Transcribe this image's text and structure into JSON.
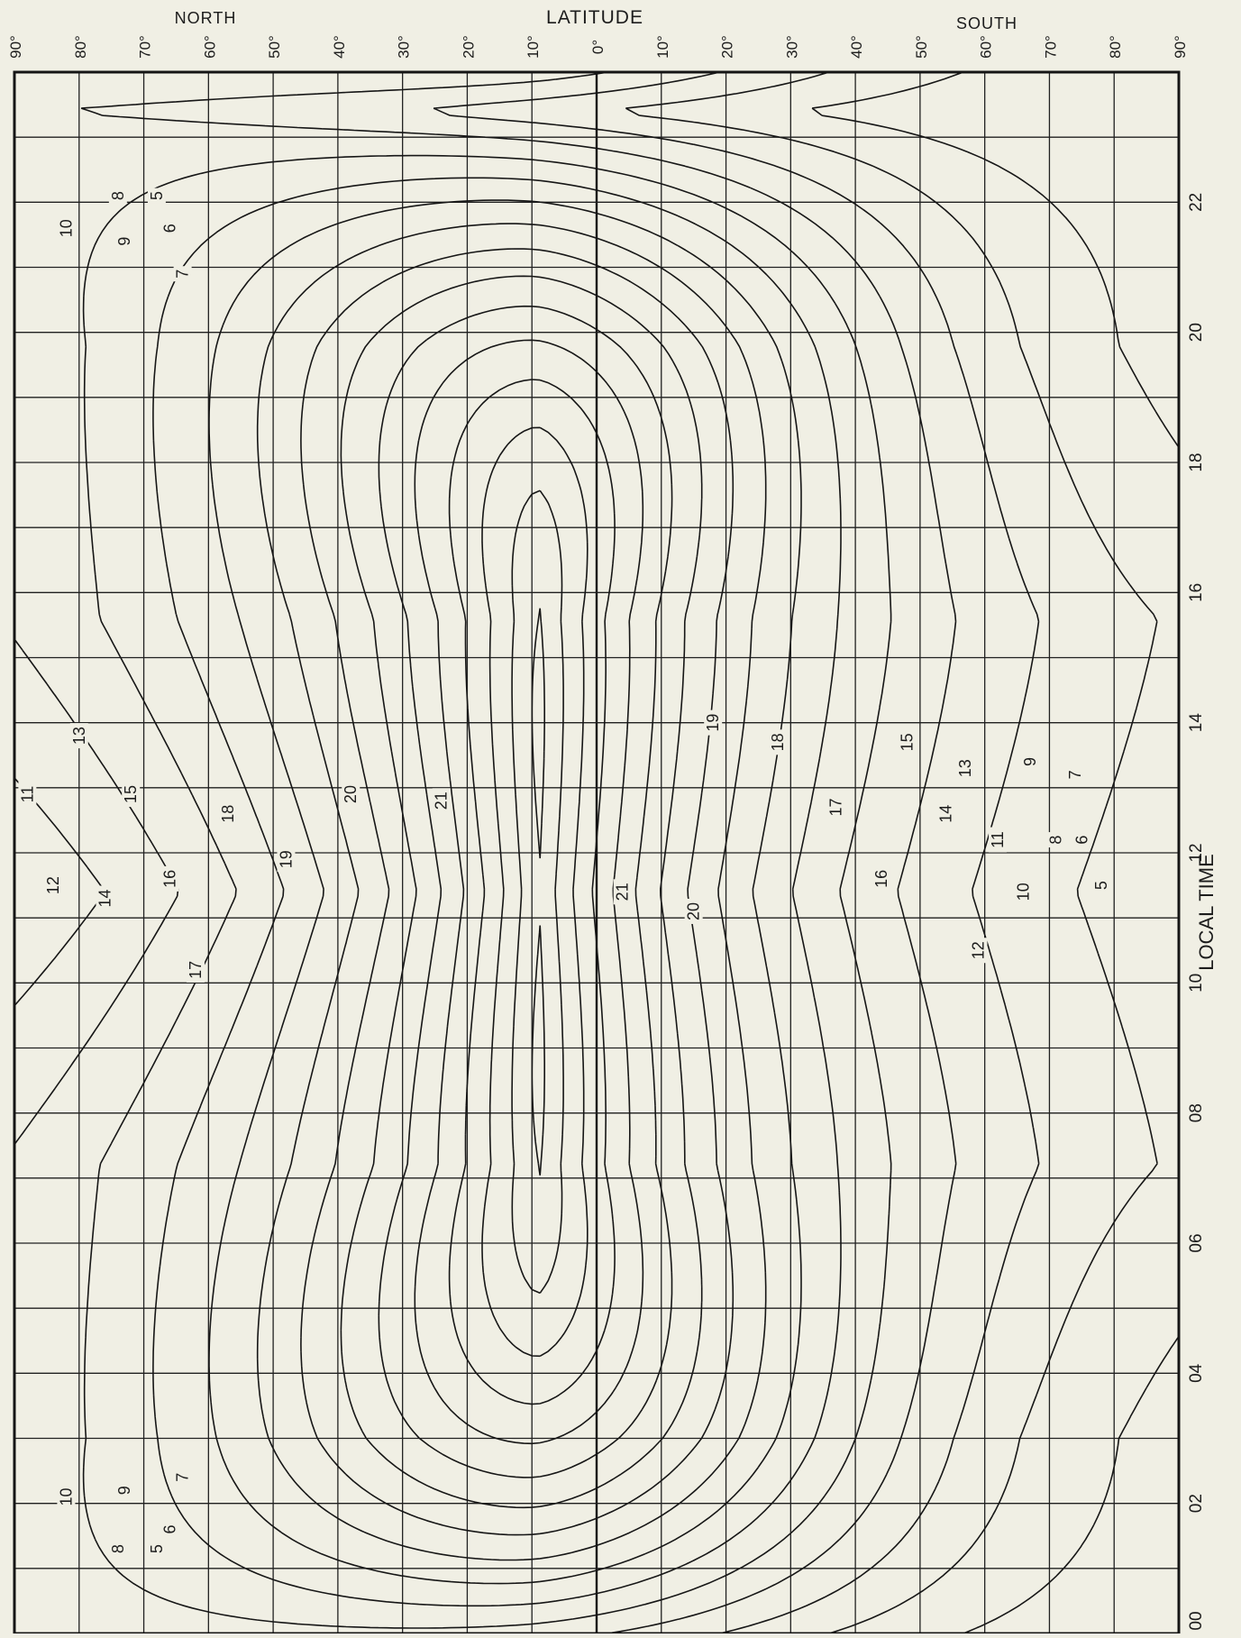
{
  "chart_data": {
    "type": "contour",
    "header": {
      "north": "NORTH",
      "latitude": "LATITUDE",
      "south": "SOUTH"
    },
    "x_axis_label": "LOCAL TIME",
    "latitude_ticks": [
      "90°",
      "80°",
      "70°",
      "60°",
      "50°",
      "40°",
      "30°",
      "20°",
      "10°",
      "0°",
      "10°",
      "20°",
      "30°",
      "40°",
      "50°",
      "60°",
      "70°",
      "80°",
      "90°"
    ],
    "latitude_ticks_signed": [
      90,
      80,
      70,
      60,
      50,
      40,
      30,
      20,
      10,
      0,
      -10,
      -20,
      -30,
      -40,
      -50,
      -60,
      -70,
      -80,
      -90
    ],
    "time_ticks": [
      "00",
      "02",
      "04",
      "06",
      "08",
      "10",
      "12",
      "14",
      "16",
      "18",
      "20",
      "22"
    ],
    "time_tick_hours": [
      0,
      2,
      4,
      6,
      8,
      10,
      12,
      14,
      16,
      18,
      20,
      22
    ],
    "lat_range": [
      90,
      -90
    ],
    "time_range": [
      0,
      24
    ],
    "contour_levels": [
      5,
      6,
      7,
      8,
      9,
      10,
      11,
      12,
      13,
      14,
      15,
      16,
      17,
      18,
      19,
      20,
      21
    ],
    "peak": {
      "local_time_h": 11.4,
      "latitude_deg": 9
    },
    "labels": [
      {
        "text": "5",
        "time": 22.1,
        "lat": 68
      },
      {
        "text": "6",
        "time": 21.6,
        "lat": 66
      },
      {
        "text": "7",
        "time": 20.9,
        "lat": 64
      },
      {
        "text": "8",
        "time": 22.1,
        "lat": 74
      },
      {
        "text": "9",
        "time": 21.4,
        "lat": 73
      },
      {
        "text": "10",
        "time": 21.6,
        "lat": 82
      },
      {
        "text": "5",
        "time": 1.3,
        "lat": 68
      },
      {
        "text": "6",
        "time": 1.6,
        "lat": 66
      },
      {
        "text": "7",
        "time": 2.4,
        "lat": 64
      },
      {
        "text": "8",
        "time": 1.3,
        "lat": 74
      },
      {
        "text": "9",
        "time": 2.2,
        "lat": 73
      },
      {
        "text": "10",
        "time": 2.1,
        "lat": 82
      },
      {
        "text": "11",
        "time": 12.9,
        "lat": 88
      },
      {
        "text": "12",
        "time": 11.5,
        "lat": 84
      },
      {
        "text": "13",
        "time": 13.8,
        "lat": 80
      },
      {
        "text": "14",
        "time": 11.3,
        "lat": 76
      },
      {
        "text": "15",
        "time": 12.9,
        "lat": 72
      },
      {
        "text": "16",
        "time": 11.6,
        "lat": 66
      },
      {
        "text": "17",
        "time": 10.2,
        "lat": 62
      },
      {
        "text": "18",
        "time": 12.6,
        "lat": 57
      },
      {
        "text": "19",
        "time": 11.9,
        "lat": 48
      },
      {
        "text": "20",
        "time": 12.9,
        "lat": 38
      },
      {
        "text": "21",
        "time": 12.8,
        "lat": 24
      },
      {
        "text": "21",
        "time": 11.4,
        "lat": -4
      },
      {
        "text": "20",
        "time": 11.1,
        "lat": -15
      },
      {
        "text": "19",
        "time": 14.0,
        "lat": -18
      },
      {
        "text": "18",
        "time": 13.7,
        "lat": -28
      },
      {
        "text": "17",
        "time": 12.7,
        "lat": -37
      },
      {
        "text": "16",
        "time": 11.6,
        "lat": -44
      },
      {
        "text": "15",
        "time": 13.7,
        "lat": -48
      },
      {
        "text": "14",
        "time": 12.6,
        "lat": -54
      },
      {
        "text": "13",
        "time": 13.3,
        "lat": -57
      },
      {
        "text": "12",
        "time": 10.5,
        "lat": -59
      },
      {
        "text": "11",
        "time": 12.2,
        "lat": -62
      },
      {
        "text": "10",
        "time": 11.4,
        "lat": -66
      },
      {
        "text": "9",
        "time": 13.4,
        "lat": -67
      },
      {
        "text": "8",
        "time": 12.2,
        "lat": -71
      },
      {
        "text": "7",
        "time": 13.2,
        "lat": -74
      },
      {
        "text": "6",
        "time": 12.2,
        "lat": -75
      },
      {
        "text": "5",
        "time": 11.5,
        "lat": -78
      }
    ]
  }
}
